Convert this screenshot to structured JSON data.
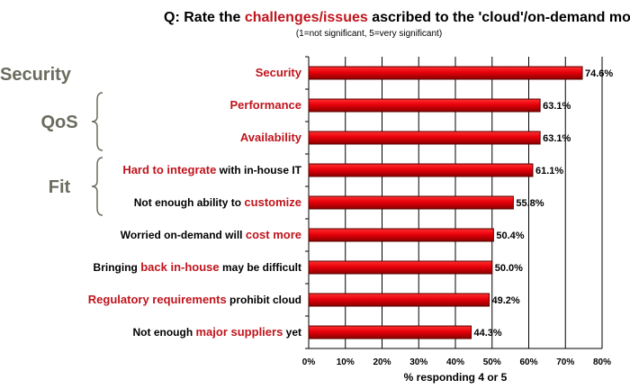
{
  "chart_data": {
    "type": "bar",
    "orientation": "horizontal",
    "title_parts": [
      {
        "text": "Q: Rate the ",
        "highlight": false
      },
      {
        "text": "challenges/issues",
        "highlight": true
      },
      {
        "text": " ascribed to the 'cloud'/on-demand model",
        "highlight": false
      }
    ],
    "subtitle": "(1=not significant, 5=very significant)",
    "categories": [
      [
        {
          "text": "Security",
          "highlight": true
        }
      ],
      [
        {
          "text": "Performance",
          "highlight": true
        }
      ],
      [
        {
          "text": "Availability",
          "highlight": true
        }
      ],
      [
        {
          "text": "Hard to integrate",
          "highlight": true
        },
        {
          "text": " with in-house IT",
          "highlight": false
        }
      ],
      [
        {
          "text": "Not enough ability to ",
          "highlight": false
        },
        {
          "text": "customize",
          "highlight": true
        }
      ],
      [
        {
          "text": "Worried on-demand will ",
          "highlight": false
        },
        {
          "text": "cost more",
          "highlight": true
        }
      ],
      [
        {
          "text": "Bringing ",
          "highlight": false
        },
        {
          "text": "back in-house",
          "highlight": true
        },
        {
          "text": " may be difficult",
          "highlight": false
        }
      ],
      [
        {
          "text": "Regulatory requirements",
          "highlight": true
        },
        {
          "text": " prohibit cloud",
          "highlight": false
        }
      ],
      [
        {
          "text": "Not enough ",
          "highlight": false
        },
        {
          "text": "major suppliers",
          "highlight": true
        },
        {
          "text": " yet",
          "highlight": false
        }
      ]
    ],
    "values": [
      74.6,
      63.1,
      63.1,
      61.1,
      55.8,
      50.4,
      50.0,
      49.2,
      44.3
    ],
    "value_labels": [
      "74.6%",
      "63.1%",
      "63.1%",
      "61.1%",
      "55.8%",
      "50.4%",
      "50.0%",
      "49.2%",
      "44.3%"
    ],
    "xlim": [
      0,
      80
    ],
    "xticks": [
      "0%",
      "10%",
      "20%",
      "30%",
      "40%",
      "50%",
      "60%",
      "70%",
      "80%"
    ],
    "xlabel": "% responding 4 or 5",
    "grid": "vertical",
    "groups": [
      {
        "label": "Security",
        "rows": [
          0
        ]
      },
      {
        "label": "QoS",
        "rows": [
          1,
          2
        ]
      },
      {
        "label": "Fit",
        "rows": [
          3,
          4
        ]
      }
    ],
    "colors": {
      "bar": "#e8000a",
      "bar_edge": "#5a0000",
      "highlight_text": "#c0141c",
      "group_text": "#6b6b5f"
    }
  }
}
